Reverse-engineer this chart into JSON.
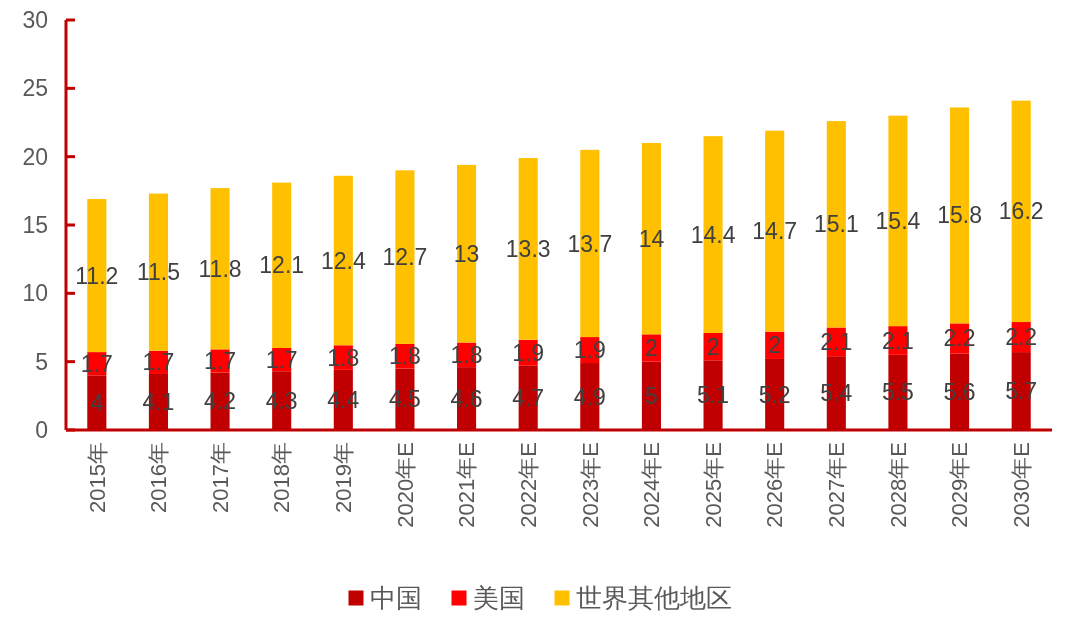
{
  "chart_data": {
    "type": "bar",
    "stacked": true,
    "categories": [
      "2015年",
      "2016年",
      "2017年",
      "2018年",
      "2019年",
      "2020年E",
      "2021年E",
      "2022年E",
      "2023年E",
      "2024年E",
      "2025年E",
      "2026年E",
      "2027年E",
      "2028年E",
      "2029年E",
      "2030年E"
    ],
    "series": [
      {
        "name": "中国",
        "color": "#c00000",
        "values": [
          4,
          4.1,
          4.2,
          4.3,
          4.4,
          4.5,
          4.6,
          4.7,
          4.9,
          5,
          5.1,
          5.2,
          5.4,
          5.5,
          5.6,
          5.7
        ]
      },
      {
        "name": "美国",
        "color": "#ff0000",
        "values": [
          1.7,
          1.7,
          1.7,
          1.7,
          1.8,
          1.8,
          1.8,
          1.9,
          1.9,
          2,
          2,
          2,
          2.1,
          2.1,
          2.2,
          2.2
        ]
      },
      {
        "name": "世界其他地区",
        "color": "#ffc000",
        "values": [
          11.2,
          11.5,
          11.8,
          12.1,
          12.4,
          12.7,
          13,
          13.3,
          13.7,
          14,
          14.4,
          14.7,
          15.1,
          15.4,
          15.8,
          16.2
        ]
      }
    ],
    "ylim": [
      0,
      30
    ],
    "yticks": [
      0,
      5,
      10,
      15,
      20,
      25,
      30
    ],
    "grid": false,
    "legend": "bottom",
    "data_labels": true
  }
}
